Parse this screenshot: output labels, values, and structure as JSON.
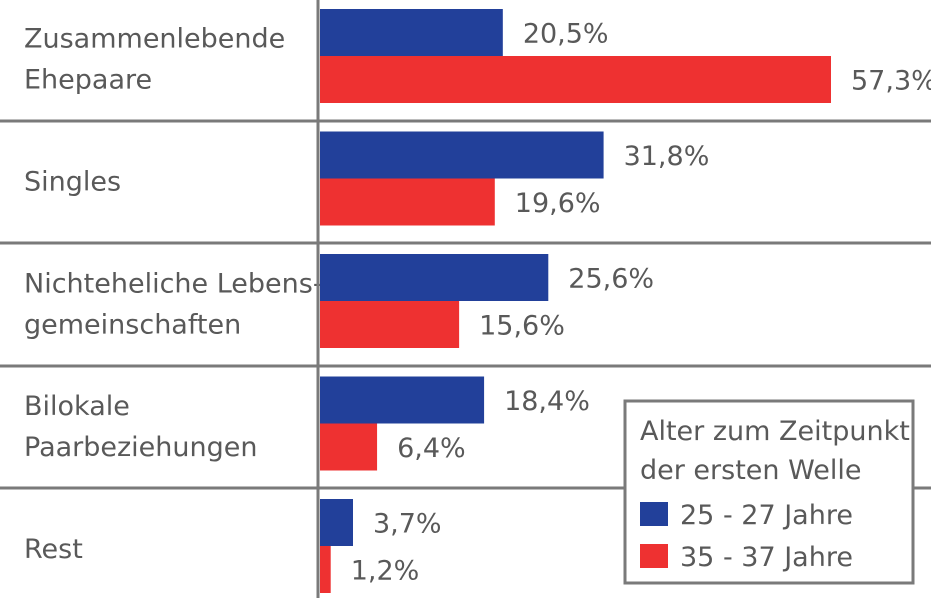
{
  "chart_data": {
    "type": "bar",
    "orientation": "horizontal",
    "categories": [
      [
        "Zusammenlebende",
        "Ehepaare"
      ],
      [
        "Singles"
      ],
      [
        "Nichteheliche Lebens-",
        "gemeinschaften"
      ],
      [
        "Bilokale",
        "Paarbeziehungen"
      ],
      [
        "Rest"
      ]
    ],
    "series": [
      {
        "name": "25 - 27 Jahre",
        "color": "#22409a",
        "values": [
          20.5,
          31.8,
          25.6,
          18.4,
          3.7
        ],
        "labels": [
          "20,5%",
          "31,8%",
          "25,6%",
          "18,4%",
          "3,7%"
        ]
      },
      {
        "name": "35 - 37 Jahre",
        "color": "#ee3131",
        "values": [
          57.3,
          19.6,
          15.6,
          6.4,
          1.2
        ],
        "labels": [
          "57,3%",
          "19,6%",
          "15,6%",
          "6,4%",
          "1,2%"
        ]
      }
    ],
    "legend": {
      "title": [
        "Alter zum Zeitpunkt",
        "der ersten Welle"
      ],
      "placement": "bottom-right"
    },
    "xlim": [
      0,
      57.3
    ],
    "grid": false
  }
}
